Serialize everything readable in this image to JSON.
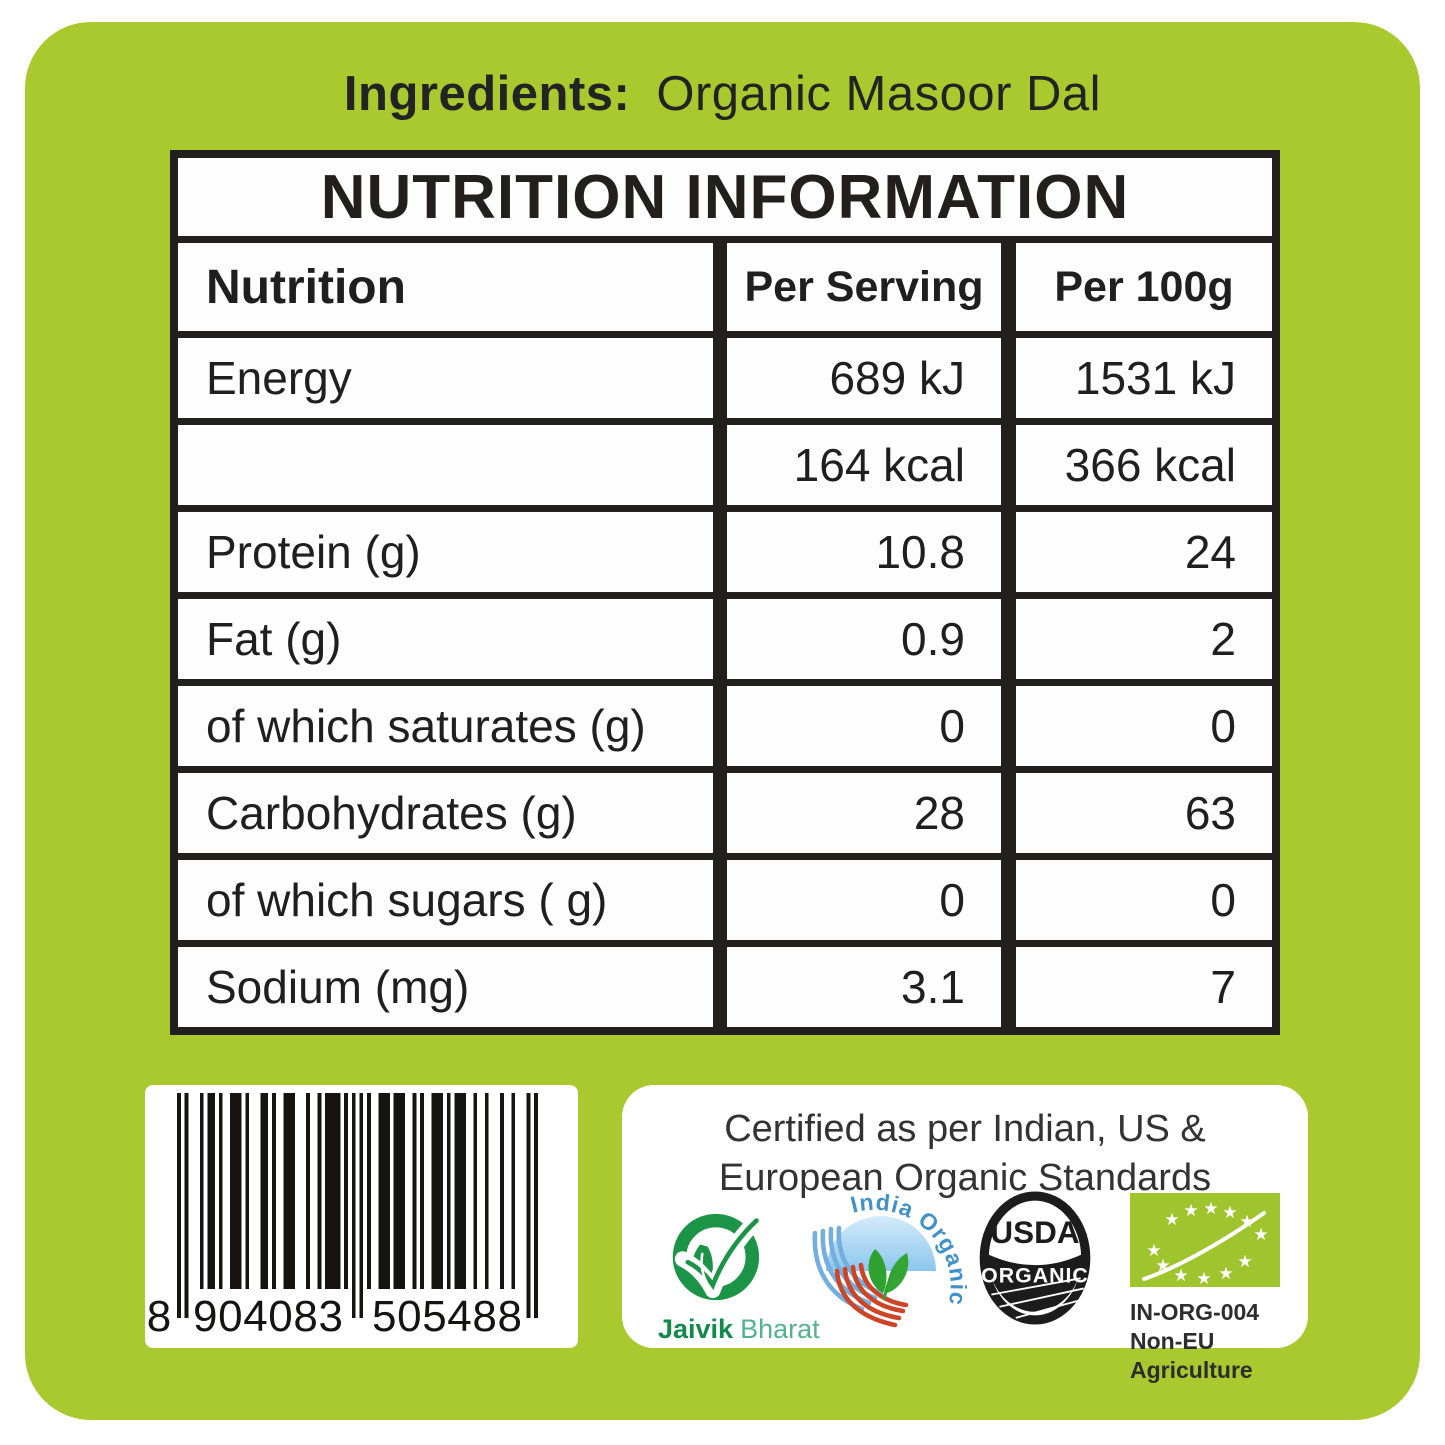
{
  "colors": {
    "panel_green": "#a9c92e",
    "eu_logo_green": "#9fc42d",
    "table_border": "#221f1f",
    "jaivik_green": "#1b9447",
    "india_blue": "#74aede",
    "india_red": "#cd4527",
    "india_text_blue": "#4191c9",
    "usda_black": "#1c1c1c",
    "bar_black": "#161413"
  },
  "ingredients": {
    "label": "Ingredients:",
    "value": "Organic Masoor Dal"
  },
  "table": {
    "title": "NUTRITION INFORMATION",
    "headers": {
      "col1": "Nutrition",
      "col2": "Per Serving",
      "col3": "Per 100g"
    },
    "rows": [
      {
        "label": "Energy",
        "per_serving": "689 kJ",
        "per_100g": "1531 kJ"
      },
      {
        "label": "",
        "per_serving": "164 kcal",
        "per_100g": "366 kcal"
      },
      {
        "label": "Protein (g)",
        "per_serving": "10.8",
        "per_100g": "24"
      },
      {
        "label": "Fat (g)",
        "per_serving": "0.9",
        "per_100g": "2"
      },
      {
        "label": "of which saturates (g)",
        "per_serving": "0",
        "per_100g": "0"
      },
      {
        "label": "Carbohydrates (g)",
        "per_serving": "28",
        "per_100g": "63"
      },
      {
        "label": "of which sugars ( g)",
        "per_serving": "0",
        "per_100g": "0"
      },
      {
        "label": "Sodium (mg)",
        "per_serving": "3.1",
        "per_100g": "7"
      }
    ]
  },
  "barcode": {
    "number_prefix": "8",
    "number_group1": "904083",
    "number_group2": "505488",
    "full_number": "8904083505488",
    "modules": "10100010110100111010001101001110001001011110101010100111011100101001110101110010010001001000101"
  },
  "certification": {
    "heading_line1": "Certified as per Indian, US &",
    "heading_line2": "European Organic Standards",
    "jaivik": {
      "word1": "Jaivik",
      "word2": "Bharat"
    },
    "india_organic_text": "India Organic",
    "usda": {
      "line1": "USDA",
      "line2": "ORGANIC"
    },
    "eu": {
      "code": "IN-ORG-004",
      "line2": "Non-EU Agriculture"
    },
    "star_glyph": "★"
  }
}
